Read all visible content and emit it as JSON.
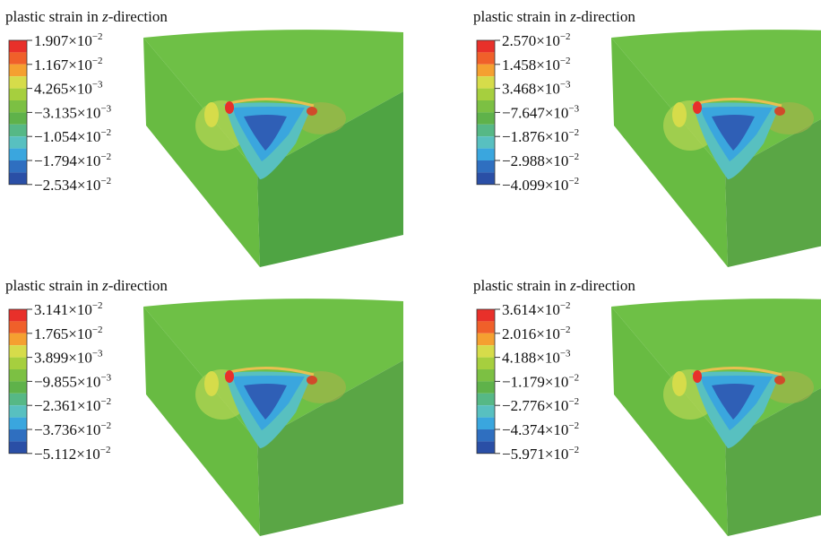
{
  "panels": [
    {
      "title": {
        "before": "plastic strain in ",
        "italic": "z",
        "after": "-direction"
      },
      "legend": [
        {
          "mantissa": "1.907×10",
          "exp": "−2"
        },
        {
          "mantissa": "1.167×10",
          "exp": "−2"
        },
        {
          "mantissa": "4.265×10",
          "exp": "−3"
        },
        {
          "mantissa": "−3.135×10",
          "exp": "−3"
        },
        {
          "mantissa": "−1.054×10",
          "exp": "−2"
        },
        {
          "mantissa": "−1.794×10",
          "exp": "−2"
        },
        {
          "mantissa": "−2.534×10",
          "exp": "−2"
        }
      ]
    },
    {
      "title": {
        "before": "plastic strain in ",
        "italic": "z",
        "after": "-direction"
      },
      "legend": [
        {
          "mantissa": "2.570×10",
          "exp": "−2"
        },
        {
          "mantissa": "1.458×10",
          "exp": "−2"
        },
        {
          "mantissa": "3.468×10",
          "exp": "−3"
        },
        {
          "mantissa": "−7.647×10",
          "exp": "−3"
        },
        {
          "mantissa": "−1.876×10",
          "exp": "−2"
        },
        {
          "mantissa": "−2.988×10",
          "exp": "−2"
        },
        {
          "mantissa": "−4.099×10",
          "exp": "−2"
        }
      ]
    },
    {
      "title": {
        "before": "plastic strain in ",
        "italic": "z",
        "after": "-direction"
      },
      "legend": [
        {
          "mantissa": "3.141×10",
          "exp": "−2"
        },
        {
          "mantissa": "1.765×10",
          "exp": "−2"
        },
        {
          "mantissa": "3.899×10",
          "exp": "−3"
        },
        {
          "mantissa": "−9.855×10",
          "exp": "−3"
        },
        {
          "mantissa": "−2.361×10",
          "exp": "−2"
        },
        {
          "mantissa": "−3.736×10",
          "exp": "−2"
        },
        {
          "mantissa": "−5.112×10",
          "exp": "−2"
        }
      ]
    },
    {
      "title": {
        "before": "plastic strain in ",
        "italic": "z",
        "after": "-direction"
      },
      "legend": [
        {
          "mantissa": "3.614×10",
          "exp": "−2"
        },
        {
          "mantissa": "2.016×10",
          "exp": "−2"
        },
        {
          "mantissa": "4.188×10",
          "exp": "−3"
        },
        {
          "mantissa": "−1.179×10",
          "exp": "−2"
        },
        {
          "mantissa": "−2.776×10",
          "exp": "−2"
        },
        {
          "mantissa": "−4.374×10",
          "exp": "−2"
        },
        {
          "mantissa": "−5.971×10",
          "exp": "−2"
        }
      ]
    }
  ]
}
